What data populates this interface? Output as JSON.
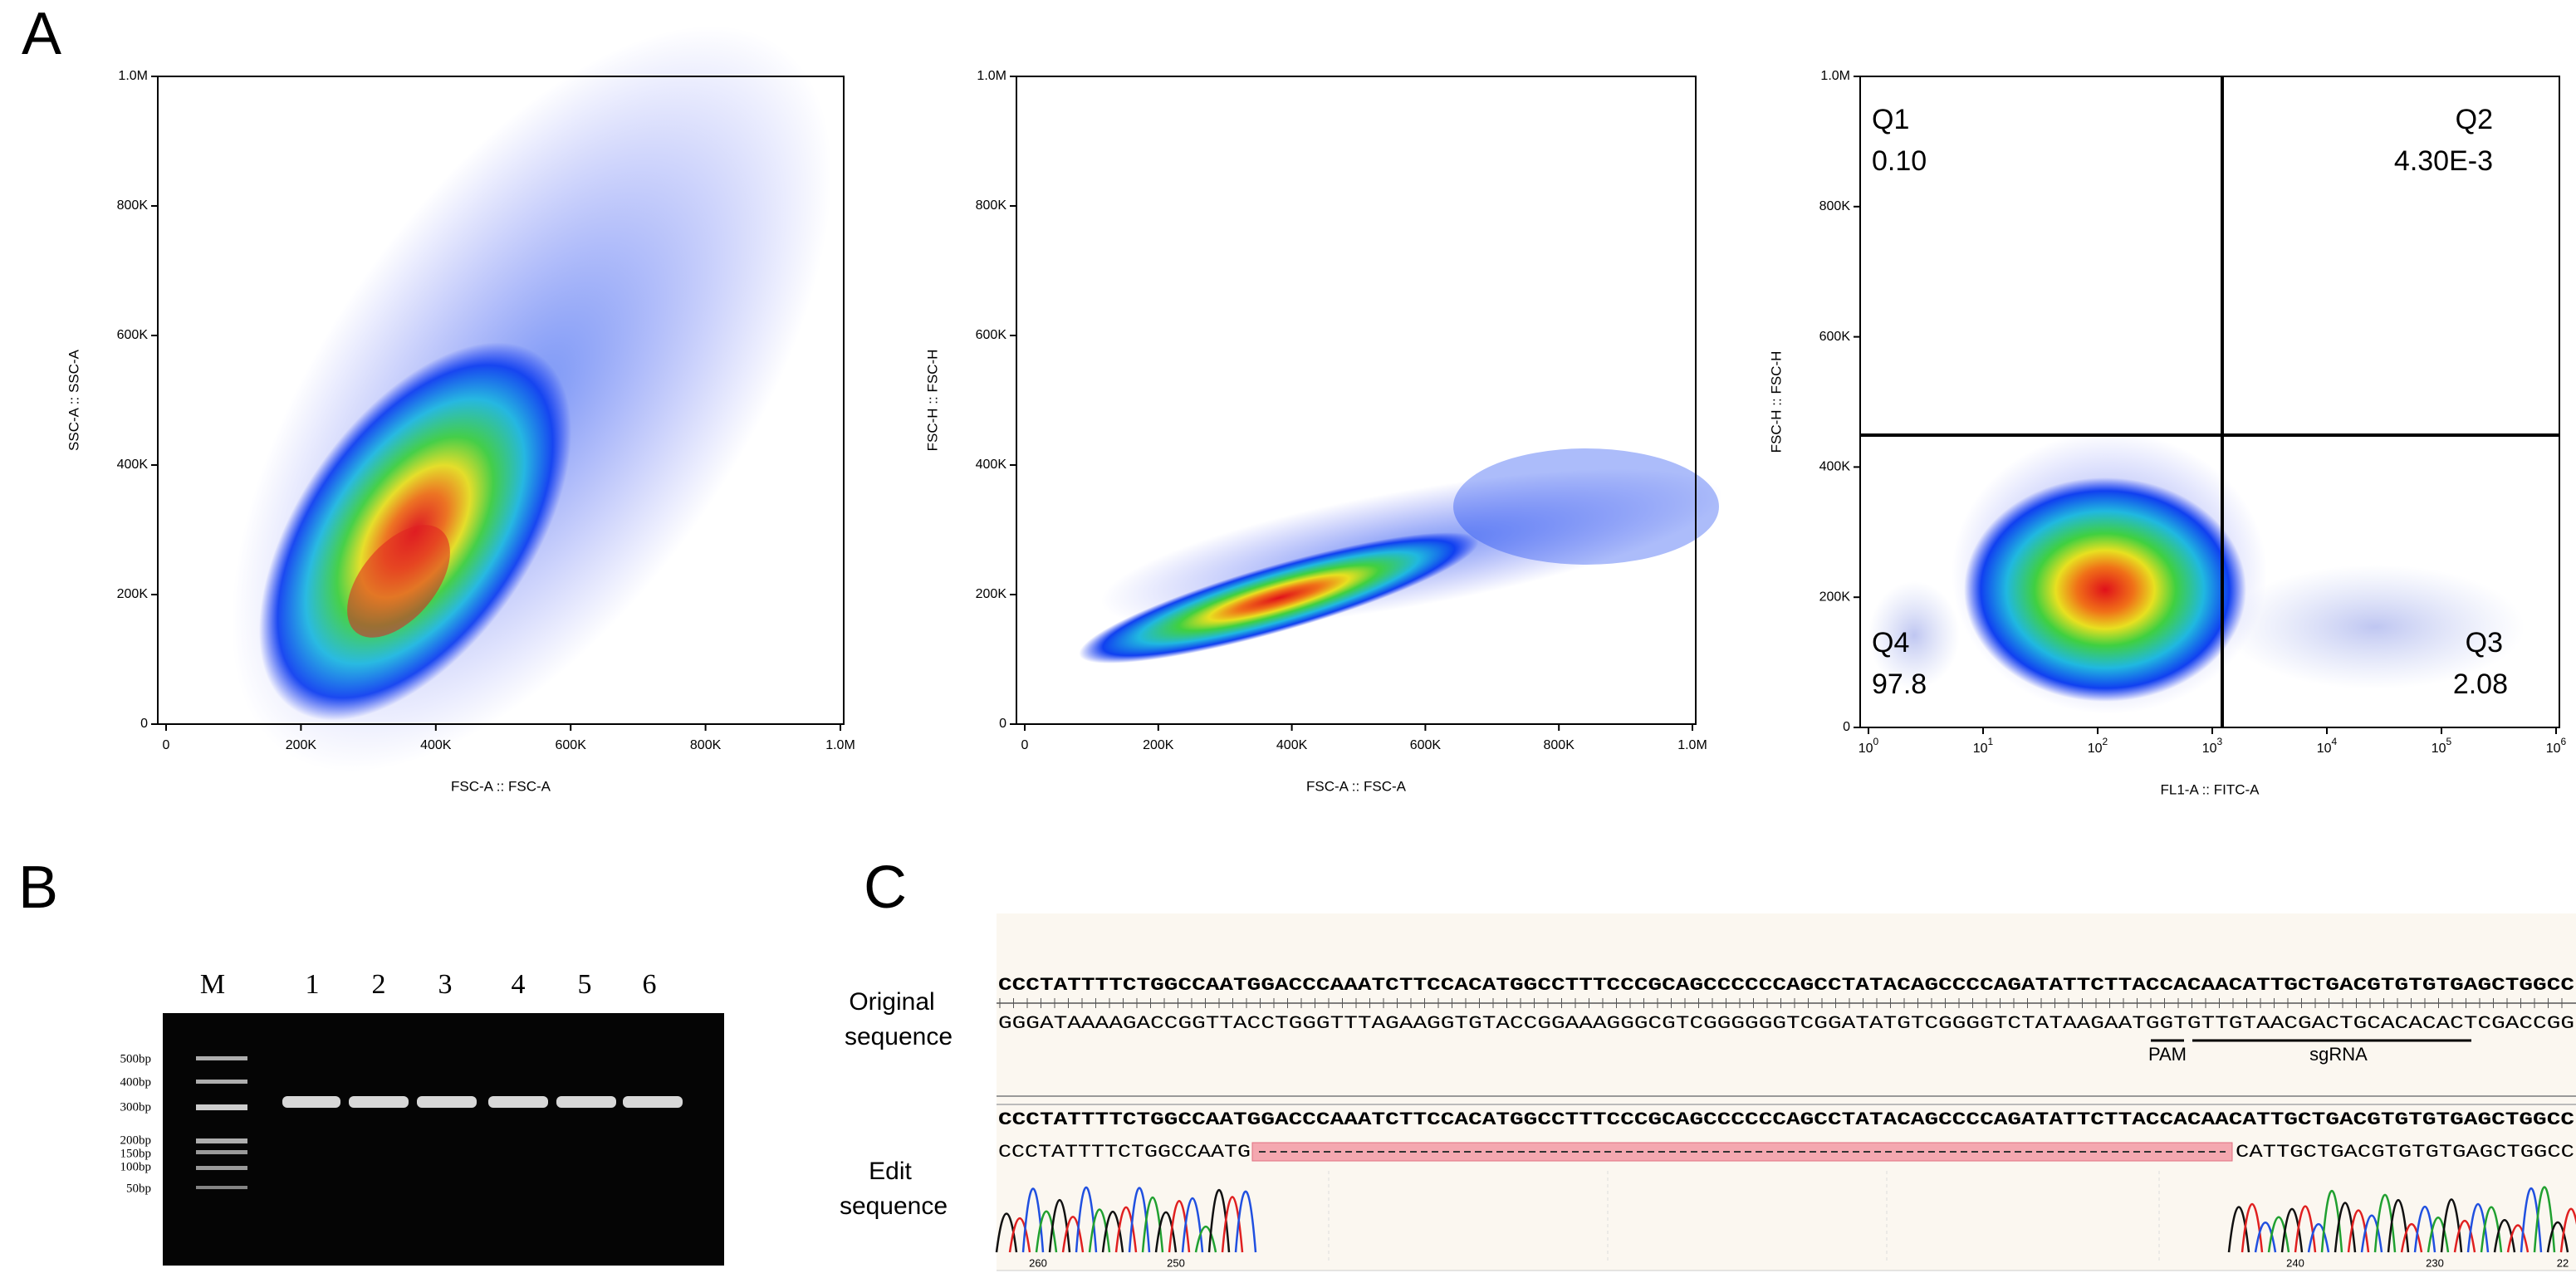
{
  "panels": {
    "a": "A",
    "b": "B",
    "c": "C"
  },
  "plot1": {
    "xlabel": "FSC-A :: FSC-A",
    "ylabel": "SSC-A :: SSC-A",
    "xticks": [
      "0",
      "200K",
      "400K",
      "600K",
      "800K",
      "1.0M"
    ],
    "yticks": [
      "0",
      "200K",
      "400K",
      "600K",
      "800K",
      "1.0M"
    ]
  },
  "plot2": {
    "xlabel": "FSC-A :: FSC-A",
    "ylabel": "FSC-H :: FSC-H",
    "xticks": [
      "0",
      "200K",
      "400K",
      "600K",
      "800K",
      "1.0M"
    ],
    "yticks": [
      "0",
      "200K",
      "400K",
      "600K",
      "800K",
      "1.0M"
    ]
  },
  "plot3": {
    "xlabel": "FL1-A :: FITC-A",
    "ylabel": "FSC-H :: FSC-H",
    "xticks": [
      {
        "base": "10",
        "exp": "0"
      },
      {
        "base": "10",
        "exp": "1"
      },
      {
        "base": "10",
        "exp": "2"
      },
      {
        "base": "10",
        "exp": "3"
      },
      {
        "base": "10",
        "exp": "4"
      },
      {
        "base": "10",
        "exp": "5"
      },
      {
        "base": "10",
        "exp": "6"
      }
    ],
    "yticks": [
      "0",
      "200K",
      "400K",
      "600K",
      "800K",
      "1.0M"
    ],
    "quadrants": [
      {
        "name": "Q1",
        "value": "0.10"
      },
      {
        "name": "Q2",
        "value": "4.30E-3"
      },
      {
        "name": "Q3",
        "value": "2.08"
      },
      {
        "name": "Q4",
        "value": "97.8"
      }
    ]
  },
  "gel": {
    "lanes": [
      "M",
      "1",
      "2",
      "3",
      "4",
      "5",
      "6"
    ],
    "ladder": [
      "500bp",
      "400bp",
      "300bp",
      "200bp",
      "150bp",
      "100bp",
      "50bp"
    ]
  },
  "sequence": {
    "original_label": [
      "Original",
      "sequence"
    ],
    "edit_label": [
      "Edit",
      "sequence"
    ],
    "original_top": "CCCTATTTTCTGGCCAATGGACCCAAATCTTCCACATGGCCTTTCCCGCAGCCCCCCAGCCTATACAGCCCCAGATATTCTTACCACAACATTGCTGACGTGTGTGAGCTGGCC",
    "original_bottom": "GGGATAAAAGACCGGTTACCTGGGTTTAGAAGGTGTACCGGAAAGGGCGTCGGGGGGTCGGATATGTCGGGGTCTATAAGAATGGTGTTGTAACGACTGCACACACTCGACCGG",
    "pam": "PAM",
    "sgrna": "sgRNA",
    "edit_top": "CCCTATTTTCTGGCCAATGGACCCAAATCTTCCACATGGCCTTTCCCGCAGCCCCCCAGCCTATACAGCCCCAGATATTCTTACCACAACATTGCTGACGTGTGTGAGCTGGCC",
    "edit_left": "CCCTATTTTCTGGCCAATG",
    "edit_right": "CATTGCTGACGTGTGTGAGCTGGCC",
    "positions": [
      "260",
      "250",
      "240",
      "230",
      "22"
    ]
  }
}
